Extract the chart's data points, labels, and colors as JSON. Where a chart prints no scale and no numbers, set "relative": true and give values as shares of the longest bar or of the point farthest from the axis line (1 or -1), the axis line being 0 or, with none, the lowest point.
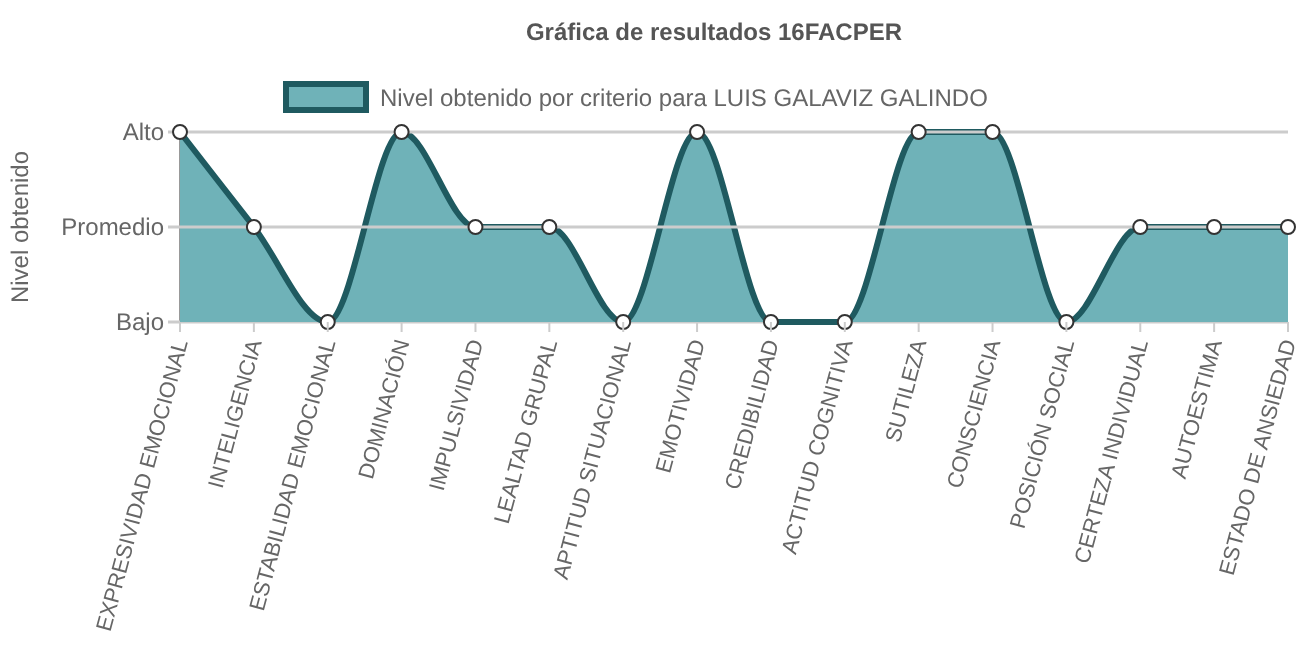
{
  "chart_data": {
    "type": "area",
    "title": "Gráfica de resultados 16FACPER",
    "ylabel": "Nivel obtenido",
    "relative": true,
    "categories": [
      "EXPRESIVIDAD EMOCIONAL",
      "INTELIGENCIA",
      "ESTABILIDAD EMOCIONAL",
      "DOMINACIÓN",
      "IMPULSIVIDAD",
      "LEALTAD GRUPAL",
      "APTITUD SITUACIONAL",
      "EMOTIVIDAD",
      "CREDIBILIDAD",
      "ACTITUD COGNITIVA",
      "SUTILEZA",
      "CONSCIENCIA",
      "POSICIÓN SOCIAL",
      "CERTEZA INDIVIDUAL",
      "AUTOESTIMA",
      "ESTADO DE ANSIEDAD"
    ],
    "series": [
      {
        "name": "Nivel obtenido por criterio para LUIS GALAVIZ GALINDO",
        "color": "#1f5a60",
        "values": [
          1,
          0.5,
          0,
          1,
          0.5,
          0.5,
          0,
          1,
          0,
          0,
          1,
          1,
          0,
          0.5,
          0.5,
          0.5
        ]
      }
    ],
    "ref_lines": [
      {
        "axis": "y",
        "value": 1,
        "label": "Alto",
        "color": "#cccccc"
      },
      {
        "axis": "y",
        "value": 0.5,
        "label": "Promedio",
        "color": "#cccccc"
      }
    ],
    "annotations": [
      "Bajo"
    ],
    "legend": "top",
    "marker": "circle"
  }
}
